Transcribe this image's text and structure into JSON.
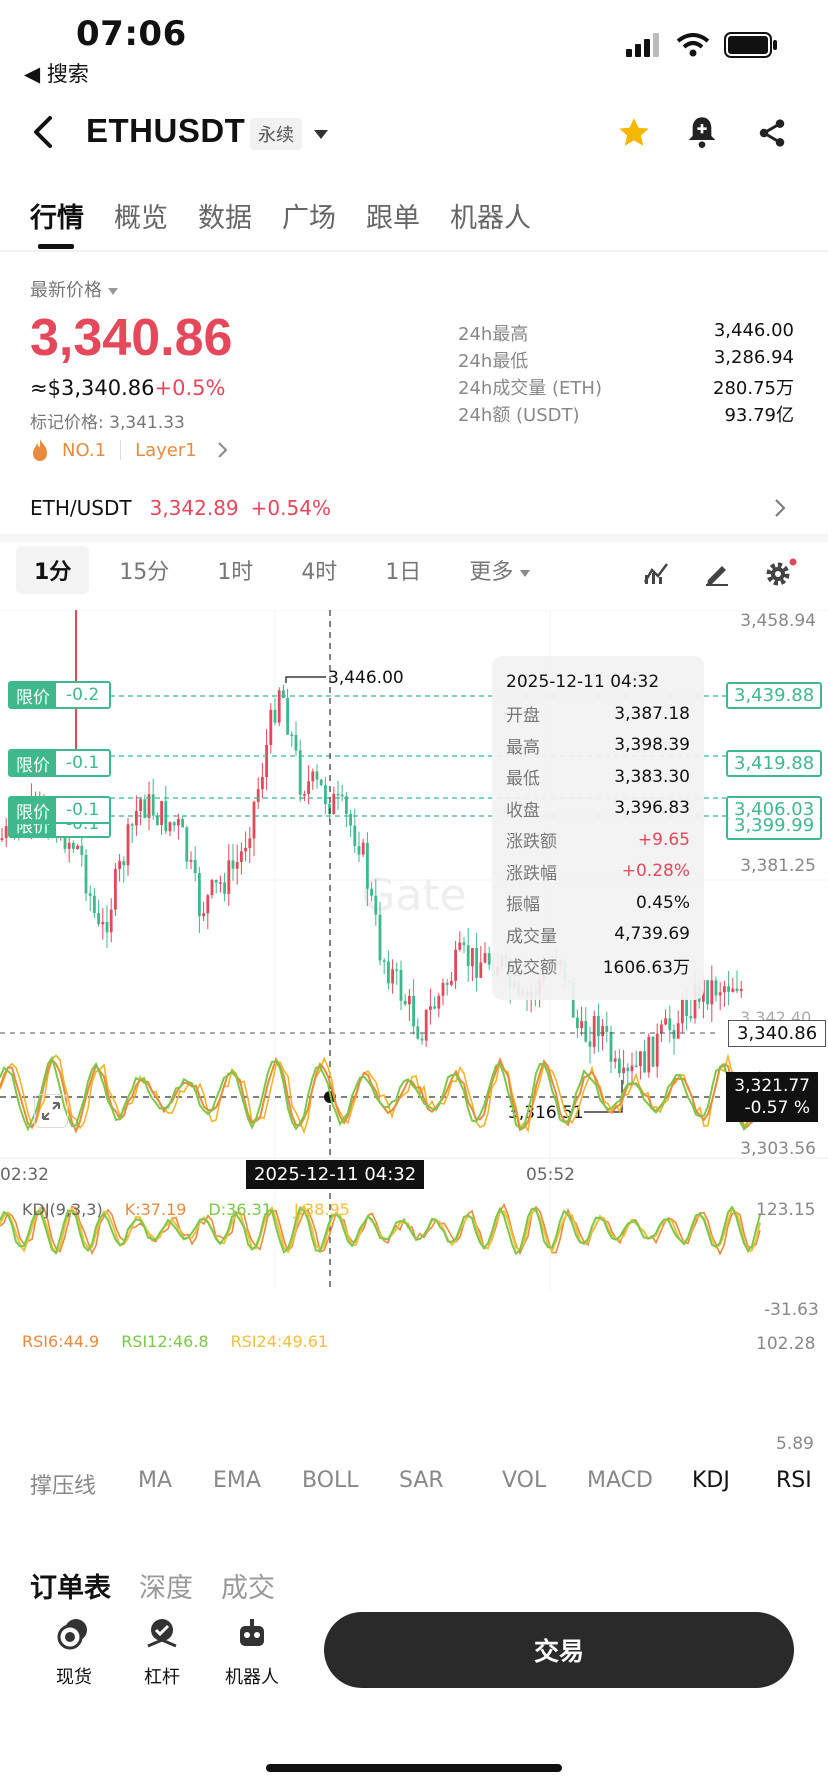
{
  "status": {
    "time": "07:06",
    "back_app": "◀ 搜索"
  },
  "header": {
    "pair": "ETHUSDT",
    "contract_type": "永续"
  },
  "tabs": [
    {
      "label": "行情",
      "active": true
    },
    {
      "label": "概览"
    },
    {
      "label": "数据"
    },
    {
      "label": "广场"
    },
    {
      "label": "跟单"
    },
    {
      "label": "机器人"
    }
  ],
  "price": {
    "label": "最新价格",
    "last": "3,340.86",
    "usd": "≈$3,340.86",
    "change": "+0.5%",
    "mark": "标记价格: 3,341.33",
    "rank": "NO.1",
    "sector": "Layer1"
  },
  "stats": [
    {
      "label": "24h最高",
      "value": "3,446.00"
    },
    {
      "label": "24h最低",
      "value": "3,286.94"
    },
    {
      "label": "24h成交量 (ETH)",
      "value": "280.75万"
    },
    {
      "label": "24h额 (USDT)",
      "value": "93.79亿"
    }
  ],
  "spot": {
    "pair": "ETH/USDT",
    "price": "3,342.89",
    "change": "+0.54%"
  },
  "timeframes": [
    "1分",
    "15分",
    "1时",
    "4时",
    "1日",
    "更多"
  ],
  "chart": {
    "y_ticks": [
      "3,458.94",
      "3,381.25",
      "3,303.56"
    ],
    "x_ticks": [
      "02:32",
      "05:52"
    ],
    "crosshair_time": "2025-12-11 04:32",
    "high_label": "3,446.00",
    "low_label": "3,316.51",
    "current_price": "3,340.86",
    "crosshair_price": "3,321.77",
    "crosshair_change": "-0.57 %",
    "limit_label": "限价",
    "orders": [
      {
        "label": "限价",
        "value": "-0.2",
        "price": "3,439.88"
      },
      {
        "label": "限价",
        "value": "-0.1",
        "price": "3,419.88"
      },
      {
        "label": "限价",
        "value": "-0.1",
        "price": "3,406.03"
      },
      {
        "label": "限价",
        "value": "-0.1",
        "price": "3,399.99"
      }
    ],
    "hidden_overlap": "3,342.40",
    "watermark": "Gate"
  },
  "tooltip": {
    "date": "2025-12-11 04:32",
    "rows": [
      {
        "label": "开盘",
        "value": "3,387.18"
      },
      {
        "label": "最高",
        "value": "3,398.39"
      },
      {
        "label": "最低",
        "value": "3,383.30"
      },
      {
        "label": "收盘",
        "value": "3,396.83"
      },
      {
        "label": "涨跌额",
        "value": "+9.65"
      },
      {
        "label": "涨跌幅",
        "value": "+0.28%"
      },
      {
        "label": "振幅",
        "value": "0.45%"
      },
      {
        "label": "成交量",
        "value": "4,739.69"
      },
      {
        "label": "成交额",
        "value": "1606.63万"
      }
    ]
  },
  "kdj": {
    "title": "KDJ(9,3,3)",
    "k": "K:37.19",
    "d": "D:36.31",
    "j": "J:38.95",
    "top": "123.15",
    "bottom": "-31.63"
  },
  "rsi": {
    "r6": "RSI6:44.9",
    "r12": "RSI12:46.8",
    "r24": "RSI24:49.61",
    "top": "102.28",
    "bottom": "5.89"
  },
  "indicators": [
    "撑压线",
    "MA",
    "EMA",
    "BOLL",
    "SAR",
    "VOL",
    "MACD",
    "KDJ",
    "RSI"
  ],
  "bottom_tabs": [
    "订单表",
    "深度",
    "成交"
  ],
  "actions": [
    "现货",
    "杠杆",
    "机器人"
  ],
  "trade_button": "交易",
  "colors": {
    "up": "#e5475b",
    "down": "#3fb88c",
    "accent": "#e88b3e",
    "star": "#f5b800"
  }
}
